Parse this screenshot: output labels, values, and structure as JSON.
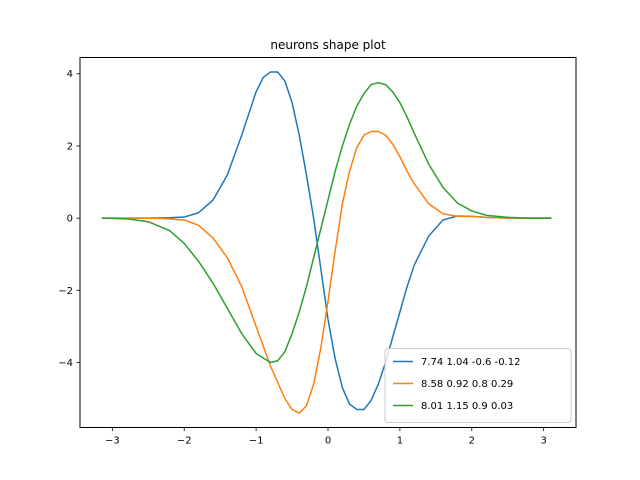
{
  "chart_data": {
    "type": "line",
    "title": "neurons shape plot",
    "xlabel": "",
    "ylabel": "",
    "xlim": [
      -3.45,
      3.45
    ],
    "ylim": [
      -5.8,
      4.45
    ],
    "xticks": [
      -3,
      -2,
      -1,
      0,
      1,
      2,
      3
    ],
    "yticks": [
      -4,
      -2,
      0,
      2,
      4
    ],
    "grid": false,
    "legend_position": "lower-right",
    "series": [
      {
        "name": "7.74 1.04 -0.6 -0.12",
        "color": "#1f77b4",
        "x": [
          -3.14,
          -2.5,
          -2.2,
          -2.0,
          -1.8,
          -1.6,
          -1.4,
          -1.2,
          -1.1,
          -1.0,
          -0.9,
          -0.8,
          -0.7,
          -0.6,
          -0.5,
          -0.4,
          -0.3,
          -0.2,
          -0.1,
          0.0,
          0.1,
          0.2,
          0.3,
          0.4,
          0.5,
          0.6,
          0.7,
          0.8,
          0.9,
          1.0,
          1.1,
          1.2,
          1.4,
          1.6,
          1.8,
          2.0,
          2.2,
          2.5,
          3.1
        ],
        "y": [
          0.0,
          0.0,
          0.01,
          0.03,
          0.15,
          0.5,
          1.2,
          2.3,
          2.9,
          3.5,
          3.9,
          4.05,
          4.05,
          3.8,
          3.2,
          2.3,
          1.2,
          0.0,
          -1.4,
          -2.8,
          -3.9,
          -4.7,
          -5.15,
          -5.3,
          -5.3,
          -5.05,
          -4.6,
          -4.0,
          -3.3,
          -2.6,
          -1.9,
          -1.3,
          -0.5,
          -0.05,
          0.06,
          0.05,
          0.02,
          0.0,
          0.0
        ]
      },
      {
        "name": "8.58 0.92 0.8 0.29",
        "color": "#ff7f0e",
        "x": [
          -3.14,
          -2.6,
          -2.3,
          -2.0,
          -1.8,
          -1.6,
          -1.4,
          -1.2,
          -1.0,
          -0.8,
          -0.6,
          -0.5,
          -0.4,
          -0.3,
          -0.2,
          -0.1,
          0.0,
          0.1,
          0.2,
          0.3,
          0.4,
          0.5,
          0.6,
          0.7,
          0.8,
          0.9,
          1.0,
          1.1,
          1.2,
          1.4,
          1.6,
          1.8,
          2.0,
          2.2,
          2.5,
          3.1
        ],
        "y": [
          0.0,
          0.0,
          -0.01,
          -0.05,
          -0.2,
          -0.55,
          -1.1,
          -1.9,
          -3.0,
          -4.1,
          -5.0,
          -5.3,
          -5.4,
          -5.2,
          -4.6,
          -3.6,
          -2.3,
          -0.9,
          0.4,
          1.3,
          1.95,
          2.3,
          2.4,
          2.4,
          2.3,
          2.05,
          1.7,
          1.3,
          0.95,
          0.4,
          0.12,
          0.05,
          0.05,
          0.02,
          0.0,
          0.0
        ]
      },
      {
        "name": "8.01 1.15 0.9 0.03",
        "color": "#2ca02c",
        "x": [
          -3.14,
          -2.8,
          -2.5,
          -2.2,
          -2.0,
          -1.8,
          -1.6,
          -1.4,
          -1.2,
          -1.0,
          -0.8,
          -0.7,
          -0.6,
          -0.5,
          -0.4,
          -0.3,
          -0.2,
          -0.1,
          0.0,
          0.1,
          0.2,
          0.3,
          0.4,
          0.5,
          0.6,
          0.7,
          0.8,
          0.9,
          1.0,
          1.1,
          1.2,
          1.4,
          1.6,
          1.8,
          2.0,
          2.2,
          2.5,
          2.8,
          3.1
        ],
        "y": [
          0.0,
          -0.02,
          -0.1,
          -0.35,
          -0.7,
          -1.2,
          -1.8,
          -2.5,
          -3.2,
          -3.75,
          -4.0,
          -3.95,
          -3.7,
          -3.2,
          -2.6,
          -1.9,
          -1.1,
          -0.3,
          0.5,
          1.3,
          2.0,
          2.6,
          3.1,
          3.45,
          3.7,
          3.75,
          3.7,
          3.5,
          3.2,
          2.8,
          2.35,
          1.5,
          0.85,
          0.42,
          0.2,
          0.08,
          0.02,
          0.0,
          0.0
        ]
      }
    ]
  }
}
